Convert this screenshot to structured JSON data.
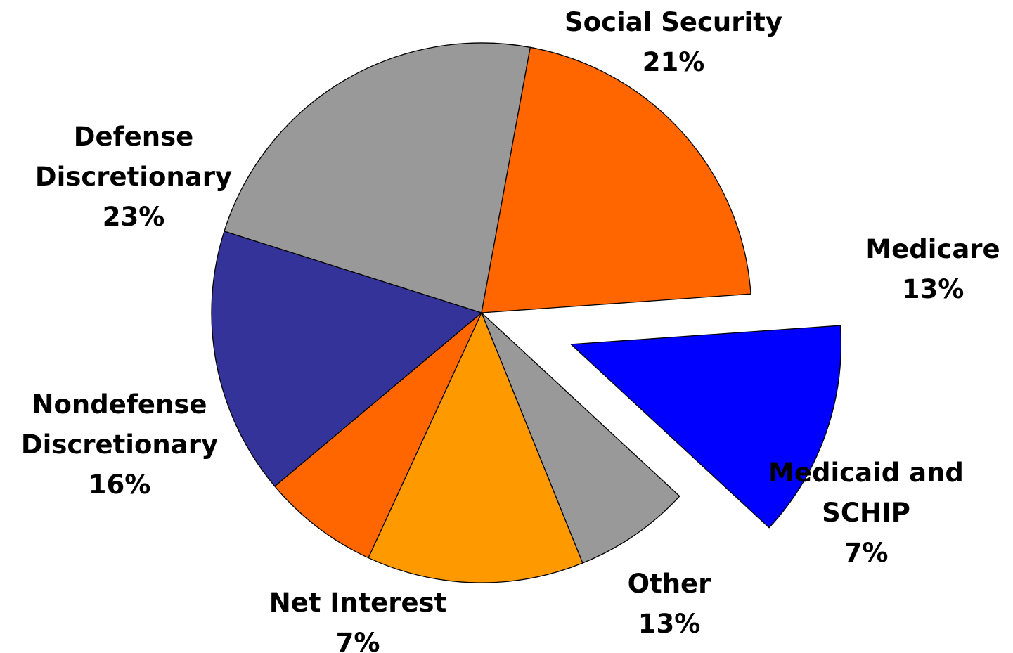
{
  "chart_data": {
    "type": "pie",
    "start_angle_deg": -4,
    "exploded_slice": "Medicare",
    "slices": [
      {
        "label_lines": [
          "Medicare"
        ],
        "percent_label": "13%",
        "value": 13,
        "color": "#0000ff"
      },
      {
        "label_lines": [
          "Medicaid and",
          "SCHIP"
        ],
        "percent_label": "7%",
        "value": 7,
        "color": "#999999"
      },
      {
        "label_lines": [
          "Other"
        ],
        "percent_label": "13%",
        "value": 13,
        "color": "#ff9900"
      },
      {
        "label_lines": [
          "Net Interest"
        ],
        "percent_label": "7%",
        "value": 7,
        "color": "#ff6600"
      },
      {
        "label_lines": [
          "Nondefense",
          "Discretionary"
        ],
        "percent_label": "16%",
        "value": 16,
        "color": "#333399"
      },
      {
        "label_lines": [
          "Defense",
          "Discretionary"
        ],
        "percent_label": "23%",
        "value": 23,
        "color": "#999999"
      },
      {
        "label_lines": [
          "Social Security"
        ],
        "percent_label": "21%",
        "value": 21,
        "color": "#ff6600"
      }
    ]
  }
}
